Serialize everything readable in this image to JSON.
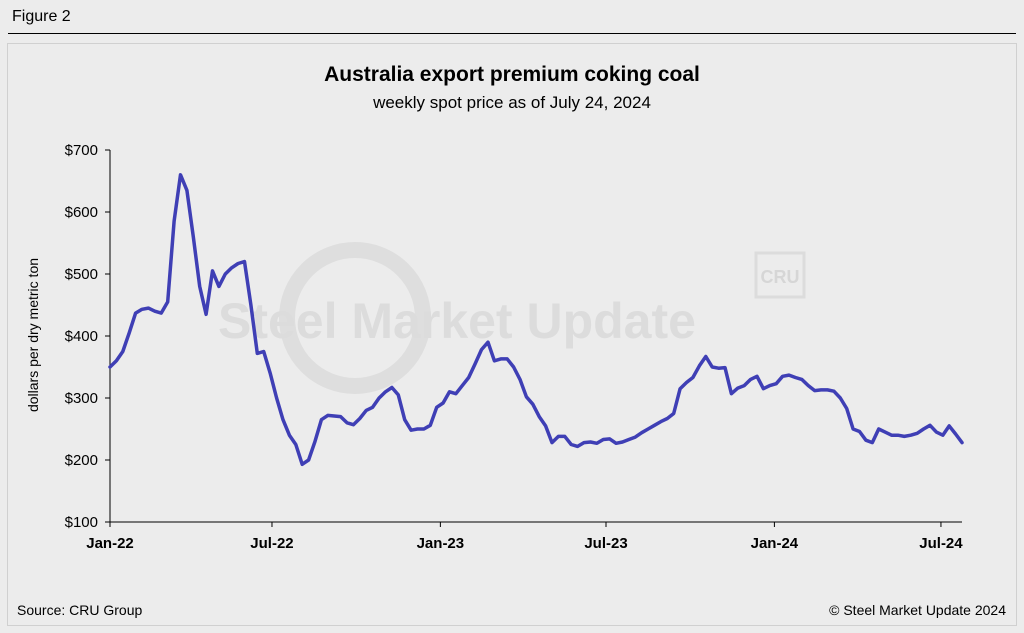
{
  "figure_label": "Figure 2",
  "source": "Source: CRU Group",
  "copyright": "© Steel Market Update 2024",
  "watermark": {
    "text": "Steel Market Update",
    "badge": "CRU"
  },
  "colors": {
    "line": "#3f3fb5",
    "background": "#ececec",
    "axis": "#000000"
  },
  "chart_data": {
    "type": "line",
    "title": "Australia export premium coking coal",
    "subtitle": "weekly spot price as of July 24, 2024",
    "ylabel": "dollars per dry metric ton",
    "xlabel": "",
    "ylim": [
      100,
      700
    ],
    "y_ticks": [
      100,
      200,
      300,
      400,
      500,
      600,
      700
    ],
    "y_tick_labels": [
      "$100",
      "$200",
      "$300",
      "$400",
      "$500",
      "$600",
      "$700"
    ],
    "x_range": [
      "2022-01-05",
      "2024-07-24"
    ],
    "x_ticks": [
      "2022-01-01",
      "2022-07-01",
      "2023-01-01",
      "2023-07-01",
      "2024-01-01",
      "2024-07-01"
    ],
    "x_tick_labels": [
      "Jan-22",
      "Jul-22",
      "Jan-23",
      "Jul-23",
      "Jan-24",
      "Jul-24"
    ],
    "grid": false,
    "legend": "none",
    "series": [
      {
        "x": [
          "2022-01-05",
          "2022-01-12",
          "2022-01-19",
          "2022-01-26",
          "2022-02-02",
          "2022-02-09",
          "2022-02-16",
          "2022-02-23",
          "2022-03-02",
          "2022-03-09",
          "2022-03-16",
          "2022-03-23",
          "2022-03-30",
          "2022-04-06",
          "2022-04-13",
          "2022-04-20",
          "2022-04-27",
          "2022-05-04",
          "2022-05-11",
          "2022-05-18",
          "2022-05-25",
          "2022-06-01",
          "2022-06-08",
          "2022-06-15",
          "2022-06-22",
          "2022-06-29",
          "2022-07-06",
          "2022-07-13",
          "2022-07-20",
          "2022-07-27",
          "2022-08-03",
          "2022-08-10",
          "2022-08-17",
          "2022-08-24",
          "2022-08-31",
          "2022-09-07",
          "2022-09-14",
          "2022-09-21",
          "2022-09-28",
          "2022-10-05",
          "2022-10-12",
          "2022-10-19",
          "2022-10-26",
          "2022-11-02",
          "2022-11-09",
          "2022-11-16",
          "2022-11-23",
          "2022-11-30",
          "2022-12-07",
          "2022-12-14",
          "2022-12-21",
          "2022-12-28",
          "2023-01-04",
          "2023-01-11",
          "2023-01-18",
          "2023-01-25",
          "2023-02-01",
          "2023-02-08",
          "2023-02-15",
          "2023-02-22",
          "2023-03-01",
          "2023-03-08",
          "2023-03-15",
          "2023-03-22",
          "2023-03-29",
          "2023-04-05",
          "2023-04-12",
          "2023-04-19",
          "2023-04-26",
          "2023-05-03",
          "2023-05-10",
          "2023-05-17",
          "2023-05-24",
          "2023-05-31",
          "2023-06-07",
          "2023-06-14",
          "2023-06-21",
          "2023-06-28",
          "2023-07-05",
          "2023-07-12",
          "2023-07-19",
          "2023-07-26",
          "2023-08-02",
          "2023-08-09",
          "2023-08-16",
          "2023-08-23",
          "2023-08-30",
          "2023-09-06",
          "2023-09-13",
          "2023-09-20",
          "2023-09-27",
          "2023-10-04",
          "2023-10-11",
          "2023-10-18",
          "2023-10-25",
          "2023-11-01",
          "2023-11-08",
          "2023-11-15",
          "2023-11-22",
          "2023-11-29",
          "2023-12-06",
          "2023-12-13",
          "2023-12-20",
          "2023-12-27",
          "2024-01-03",
          "2024-01-10",
          "2024-01-17",
          "2024-01-24",
          "2024-01-31",
          "2024-02-07",
          "2024-02-14",
          "2024-02-21",
          "2024-02-28",
          "2024-03-06",
          "2024-03-13",
          "2024-03-20",
          "2024-03-27",
          "2024-04-03",
          "2024-04-10",
          "2024-04-17",
          "2024-04-24",
          "2024-05-01",
          "2024-05-08",
          "2024-05-15",
          "2024-05-22",
          "2024-05-29",
          "2024-06-05",
          "2024-06-12",
          "2024-06-19",
          "2024-06-26",
          "2024-07-03",
          "2024-07-10",
          "2024-07-17",
          "2024-07-24"
        ],
        "values": [
          350,
          360,
          375,
          405,
          437,
          443,
          445,
          440,
          437,
          455,
          585,
          660,
          635,
          560,
          480,
          435,
          505,
          480,
          500,
          510,
          517,
          520,
          450,
          372,
          375,
          340,
          300,
          265,
          240,
          225,
          193,
          200,
          230,
          265,
          272,
          271,
          270,
          260,
          257,
          267,
          280,
          285,
          300,
          310,
          317,
          305,
          265,
          248,
          250,
          250,
          256,
          285,
          292,
          310,
          307,
          320,
          333,
          355,
          378,
          390,
          360,
          363,
          363,
          350,
          330,
          302,
          290,
          270,
          255,
          228,
          238,
          238,
          225,
          222,
          228,
          229,
          227,
          233,
          234,
          227,
          229,
          233,
          237,
          244,
          250,
          256,
          262,
          267,
          275,
          315,
          325,
          333,
          352,
          367,
          350,
          348,
          349,
          307,
          316,
          320,
          330,
          335,
          315,
          320,
          323,
          335,
          337,
          333,
          330,
          320,
          312,
          313,
          313,
          311,
          300,
          283,
          250,
          246,
          232,
          228,
          250,
          245,
          240,
          240,
          238,
          240,
          243,
          250,
          256,
          245,
          240,
          255,
          242,
          228
        ]
      }
    ]
  }
}
